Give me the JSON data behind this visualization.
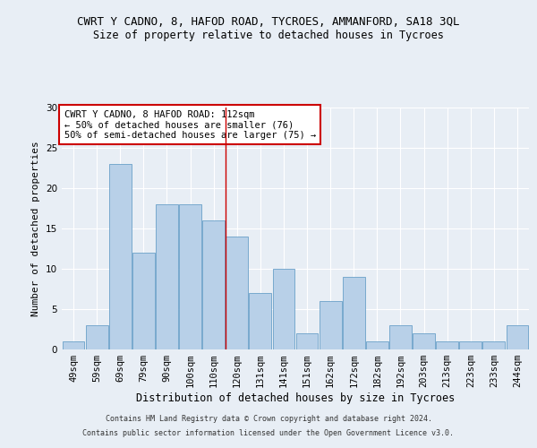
{
  "title1": "CWRT Y CADNO, 8, HAFOD ROAD, TYCROES, AMMANFORD, SA18 3QL",
  "title2": "Size of property relative to detached houses in Tycroes",
  "xlabel": "Distribution of detached houses by size in Tycroes",
  "ylabel": "Number of detached properties",
  "bar_values": [
    1,
    3,
    23,
    12,
    18,
    18,
    16,
    14,
    7,
    10,
    2,
    6,
    9,
    1,
    3,
    2,
    1,
    1,
    1,
    3
  ],
  "bar_labels": [
    "49sqm",
    "59sqm",
    "69sqm",
    "79sqm",
    "90sqm",
    "100sqm",
    "110sqm",
    "120sqm",
    "131sqm",
    "141sqm",
    "151sqm",
    "162sqm",
    "172sqm",
    "182sqm",
    "192sqm",
    "203sqm",
    "213sqm",
    "223sqm",
    "233sqm",
    "244sqm"
  ],
  "bar_color": "#b8d0e8",
  "bar_edge_color": "#6aa0c8",
  "vline_x": 6.5,
  "vline_color": "#cc0000",
  "ylim": [
    0,
    30
  ],
  "yticks": [
    0,
    5,
    10,
    15,
    20,
    25,
    30
  ],
  "annotation_title": "CWRT Y CADNO, 8 HAFOD ROAD: 112sqm",
  "annotation_line2": "← 50% of detached houses are smaller (76)",
  "annotation_line3": "50% of semi-detached houses are larger (75) →",
  "annotation_box_color": "#ffffff",
  "annotation_box_edge": "#cc0000",
  "footer1": "Contains HM Land Registry data © Crown copyright and database right 2024.",
  "footer2": "Contains public sector information licensed under the Open Government Licence v3.0.",
  "bg_color": "#e8eef5",
  "grid_color": "#ffffff",
  "title1_fontsize": 9,
  "title2_fontsize": 8.5,
  "xlabel_fontsize": 8.5,
  "ylabel_fontsize": 8,
  "annotation_fontsize": 7.5,
  "footer_fontsize": 6,
  "tick_fontsize": 7.5
}
